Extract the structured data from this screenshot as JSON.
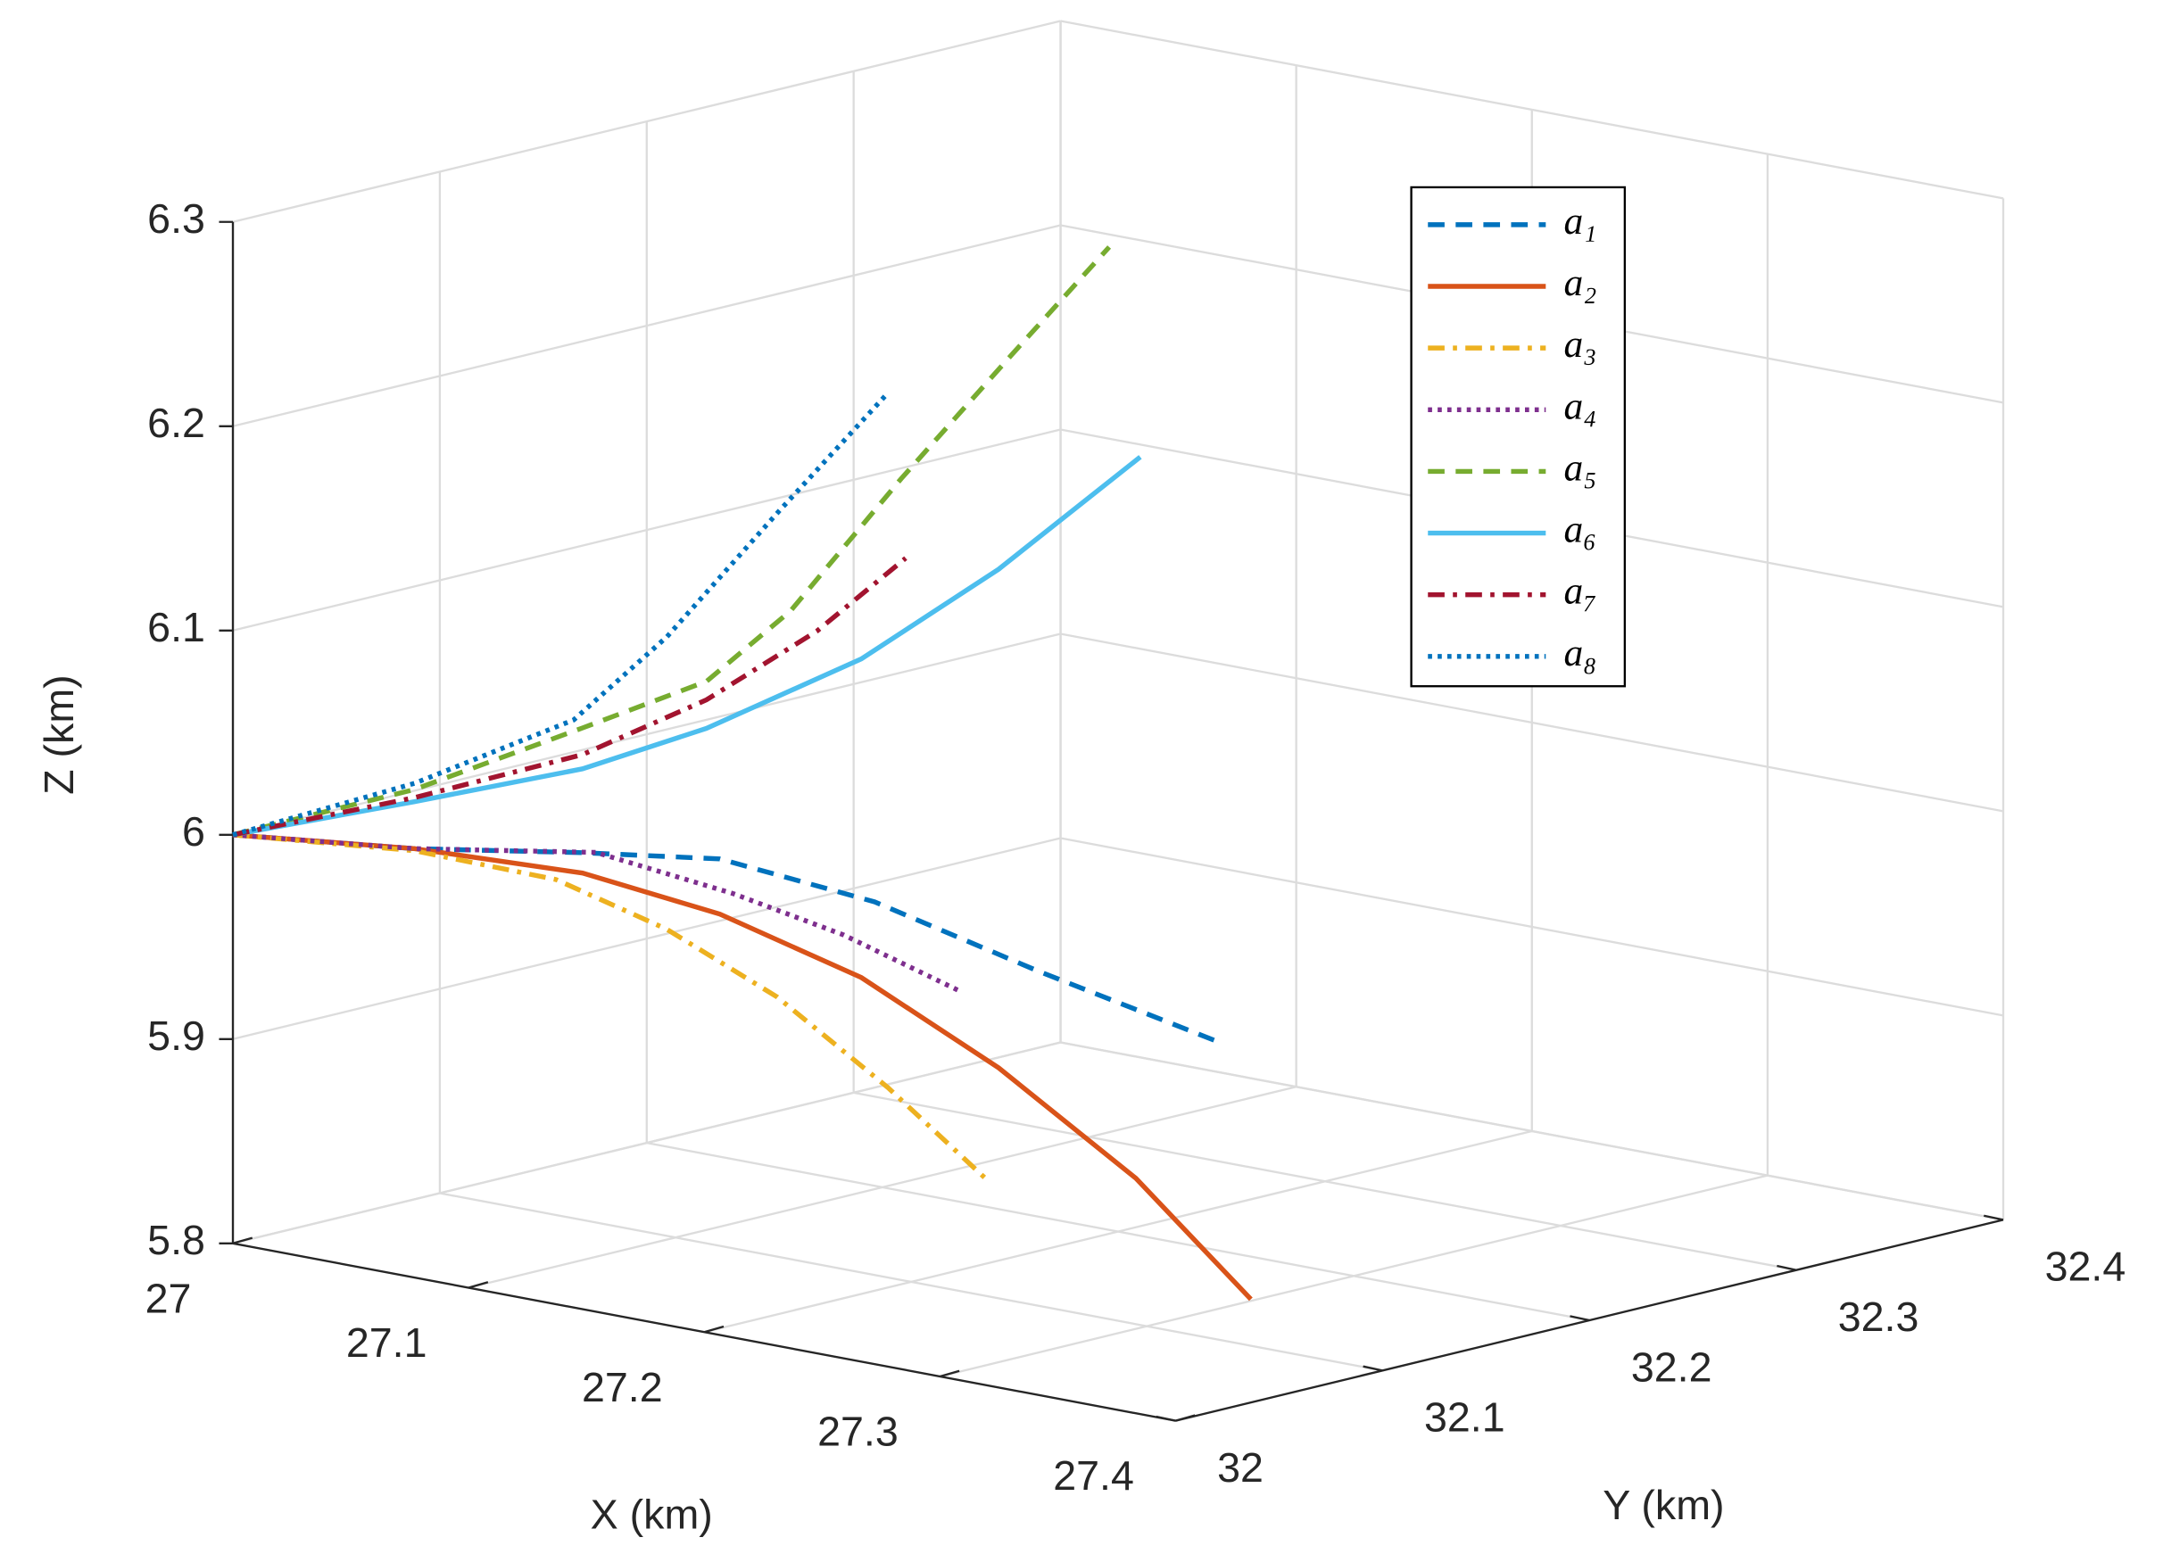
{
  "chart_data": {
    "type": "line3d",
    "xlabel": "X (km)",
    "ylabel": "Y (km)",
    "zlabel": "Z (km)",
    "xlim": [
      27,
      27.4
    ],
    "ylim": [
      32,
      32.4
    ],
    "zlim": [
      5.8,
      6.3
    ],
    "xticks": [
      27,
      27.1,
      27.2,
      27.3,
      27.4
    ],
    "yticks": [
      32,
      32.1,
      32.2,
      32.3,
      32.4
    ],
    "zticks": [
      5.8,
      5.9,
      6,
      6.1,
      6.2,
      6.3
    ],
    "grid": true,
    "legend": "upper right",
    "series": [
      {
        "name": "a₁",
        "color": "#0072BD",
        "dash": "dashed",
        "x": [
          27,
          27.041,
          27.079,
          27.11,
          27.145,
          27.182,
          27.224
        ],
        "y": [
          32,
          32.041,
          32.079,
          32.11,
          32.145,
          32.182,
          32.224
        ],
        "z": [
          6,
          5.992,
          5.989,
          5.985,
          5.963,
          5.928,
          5.891
        ]
      },
      {
        "name": "a₂",
        "color": "#D95319",
        "dash": "solid",
        "x": [
          27,
          27.041,
          27.079,
          27.11,
          27.142,
          27.173,
          27.204,
          27.23
        ],
        "y": [
          32,
          32.041,
          32.079,
          32.11,
          32.142,
          32.173,
          32.204,
          32.23
        ],
        "z": [
          6,
          5.992,
          5.979,
          5.958,
          5.926,
          5.881,
          5.826,
          5.766
        ]
      },
      {
        "name": "a₃",
        "color": "#EDB120",
        "dash": "dashdot",
        "x": [
          27,
          27.041,
          27.073,
          27.098,
          27.123,
          27.148,
          27.17
        ],
        "y": [
          32,
          32.041,
          32.073,
          32.098,
          32.123,
          32.148,
          32.17
        ],
        "z": [
          6,
          5.991,
          5.976,
          5.951,
          5.917,
          5.872,
          5.827
        ]
      },
      {
        "name": "a₄",
        "color": "#7E2F8E",
        "dash": "dotted",
        "x": [
          27,
          27.041,
          27.082,
          27.113,
          27.138,
          27.164
        ],
        "y": [
          32,
          32.041,
          32.082,
          32.113,
          32.138,
          32.164
        ],
        "z": [
          6,
          5.992,
          5.989,
          5.968,
          5.947,
          5.919
        ]
      },
      {
        "name": "a₅",
        "color": "#77AC30",
        "dash": "dashed",
        "x": [
          27,
          27.041,
          27.079,
          27.107,
          27.126,
          27.151,
          27.176,
          27.198
        ],
        "y": [
          32,
          32.041,
          32.079,
          32.107,
          32.126,
          32.151,
          32.176,
          32.198
        ],
        "z": [
          6,
          6.021,
          6.05,
          6.072,
          6.106,
          6.17,
          6.23,
          6.282
        ]
      },
      {
        "name": "a₆",
        "color": "#4DBEEE",
        "dash": "solid",
        "x": [
          27,
          27.041,
          27.079,
          27.107,
          27.142,
          27.173,
          27.205
        ],
        "y": [
          32,
          32.041,
          32.079,
          32.107,
          32.142,
          32.173,
          32.205
        ],
        "z": [
          6,
          6.015,
          6.03,
          6.049,
          6.082,
          6.125,
          6.179
        ]
      },
      {
        "name": "a₇",
        "color": "#A2142F",
        "dash": "dashdot",
        "x": [
          27,
          27.041,
          27.079,
          27.107,
          27.132,
          27.152
        ],
        "y": [
          32,
          32.041,
          32.079,
          32.107,
          32.132,
          32.152
        ],
        "z": [
          6,
          6.017,
          6.037,
          6.063,
          6.096,
          6.131
        ]
      },
      {
        "name": "a₈",
        "color": "#0072BD",
        "dash": "dotted",
        "x": [
          27,
          27.041,
          27.077,
          27.098,
          27.123,
          27.148
        ],
        "y": [
          32,
          32.041,
          32.077,
          32.098,
          32.123,
          32.148
        ],
        "z": [
          6,
          6.024,
          6.054,
          6.094,
          6.154,
          6.212
        ]
      }
    ]
  }
}
